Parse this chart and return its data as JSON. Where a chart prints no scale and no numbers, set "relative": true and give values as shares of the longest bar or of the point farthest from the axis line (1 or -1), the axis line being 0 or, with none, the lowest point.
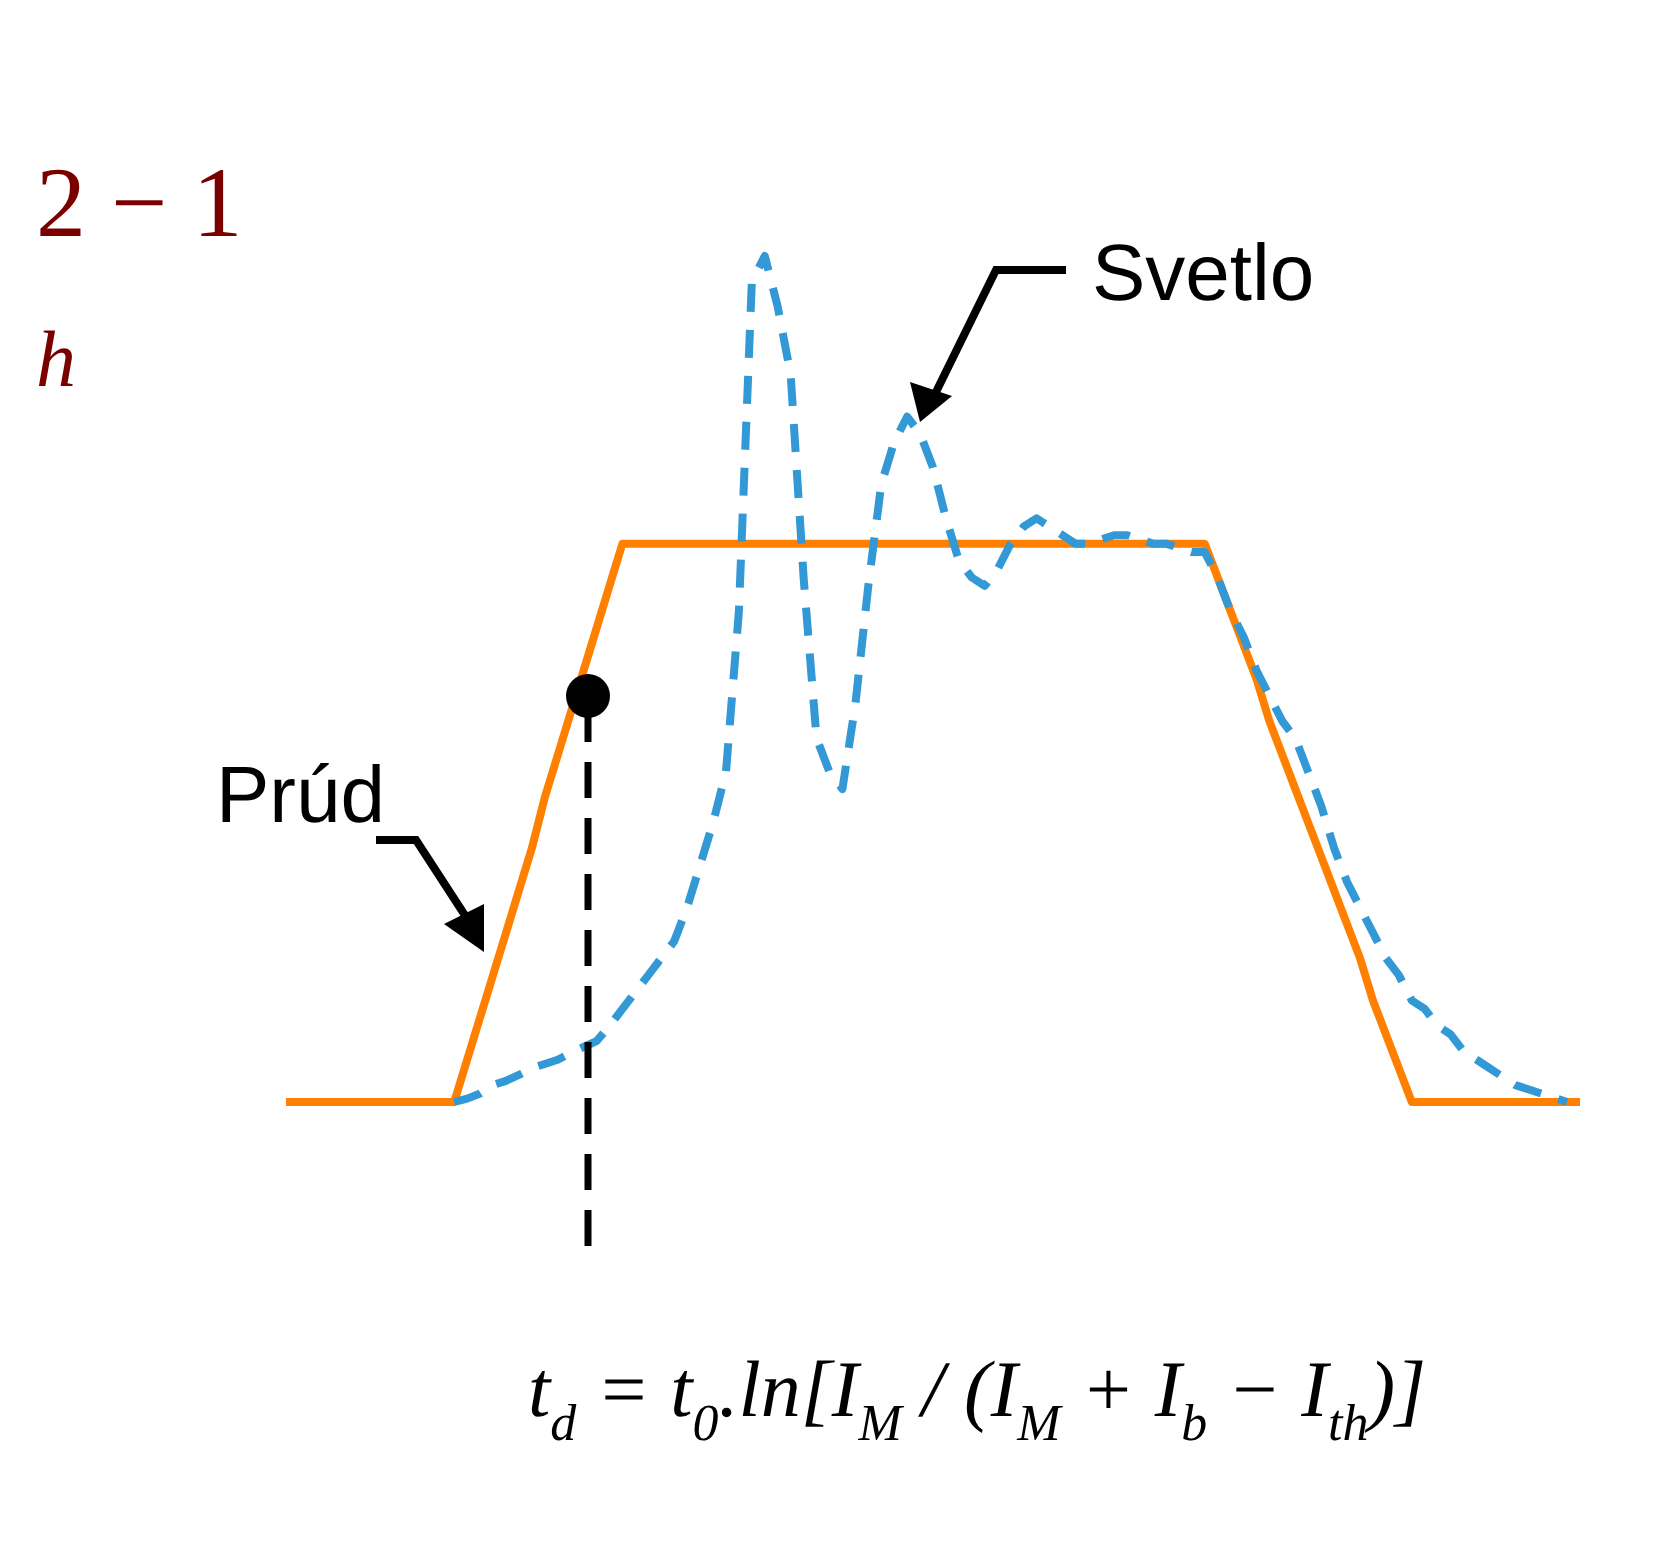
{
  "chart_data": {
    "type": "line",
    "relative": true,
    "categories": [
      null,
      null,
      null,
      null,
      null,
      null,
      null,
      null,
      null,
      null,
      null,
      null,
      null,
      null,
      null,
      null,
      null,
      null,
      null,
      null,
      null,
      null,
      null,
      null,
      null,
      null,
      null,
      null,
      null,
      null,
      null,
      null,
      null,
      null,
      null,
      null,
      null,
      null,
      null,
      null,
      null,
      null,
      null,
      null,
      null,
      null,
      null,
      null,
      null,
      null,
      null,
      null,
      null,
      null,
      null,
      null,
      null,
      null,
      null,
      null,
      null,
      null,
      null,
      null,
      null,
      null,
      null,
      null,
      null,
      null,
      null,
      null,
      null,
      null,
      null,
      null,
      null,
      null,
      null,
      null,
      null,
      null,
      null,
      null,
      null,
      null,
      null,
      null,
      null,
      null,
      null,
      null,
      null,
      null,
      null,
      null,
      null,
      null,
      null,
      null,
      null
    ],
    "series": [
      {
        "name": "Prúd",
        "color": "#ff8000",
        "line_style": "solid",
        "values": [
          0,
          0,
          0,
          0,
          0,
          0,
          0,
          0,
          0,
          0,
          0,
          0,
          0,
          0,
          0.05,
          0.1,
          0.15,
          0.2,
          0.25,
          0.3,
          0.36,
          0.41,
          0.46,
          0.51,
          0.56,
          0.61,
          0.66,
          0.66,
          0.66,
          0.66,
          0.66,
          0.66,
          0.66,
          0.66,
          0.66,
          0.66,
          0.66,
          0.66,
          0.66,
          0.66,
          0.66,
          0.66,
          0.66,
          0.66,
          0.66,
          0.66,
          0.66,
          0.66,
          0.66,
          0.66,
          0.66,
          0.66,
          0.66,
          0.66,
          0.66,
          0.66,
          0.66,
          0.66,
          0.66,
          0.66,
          0.66,
          0.66,
          0.66,
          0.66,
          0.66,
          0.66,
          0.66,
          0.66,
          0.66,
          0.66,
          0.66,
          0.66,
          0.62,
          0.58,
          0.54,
          0.5,
          0.45,
          0.41,
          0.37,
          0.33,
          0.29,
          0.25,
          0.21,
          0.17,
          0.12,
          0.08,
          0.04,
          0,
          0,
          0,
          0,
          0,
          0,
          0,
          0,
          0,
          0,
          0,
          0,
          0,
          0
        ]
      },
      {
        "name": "Svetlo",
        "color": "#3399d6",
        "line_style": "dashed",
        "values": [
          null,
          null,
          null,
          null,
          null,
          null,
          null,
          null,
          null,
          null,
          null,
          null,
          null,
          0,
          0.004,
          0.01,
          0.02,
          0.025,
          0.032,
          0.04,
          0.045,
          0.05,
          0.058,
          0.065,
          0.072,
          0.09,
          0.11,
          0.13,
          0.15,
          0.17,
          0.19,
          0.23,
          0.28,
          0.33,
          0.39,
          0.58,
          0.97,
          1,
          0.94,
          0.86,
          0.62,
          0.43,
          0.39,
          0.37,
          0.47,
          0.61,
          0.73,
          0.78,
          0.81,
          0.79,
          0.75,
          0.69,
          0.64,
          0.62,
          0.61,
          0.63,
          0.66,
          0.68,
          0.69,
          0.68,
          0.67,
          0.66,
          0.66,
          0.665,
          0.67,
          0.67,
          0.665,
          0.66,
          0.66,
          0.655,
          0.65,
          0.65,
          0.62,
          0.58,
          0.55,
          0.51,
          0.48,
          0.45,
          0.43,
          0.39,
          0.35,
          0.3,
          0.26,
          0.23,
          0.2,
          0.17,
          0.15,
          0.12,
          0.11,
          0.09,
          0.08,
          0.06,
          0.05,
          0.04,
          0.03,
          0.02,
          0.015,
          0.01,
          0.005,
          0,
          null
        ]
      }
    ],
    "annotations": [
      "t$_{d}$ = t$_{0}$.ln[I$_{M}$ / (I$_{M}$ + I$_{b}$ − I$_{th}$)]",
      "2 − 1",
      "h"
    ]
  }
}
